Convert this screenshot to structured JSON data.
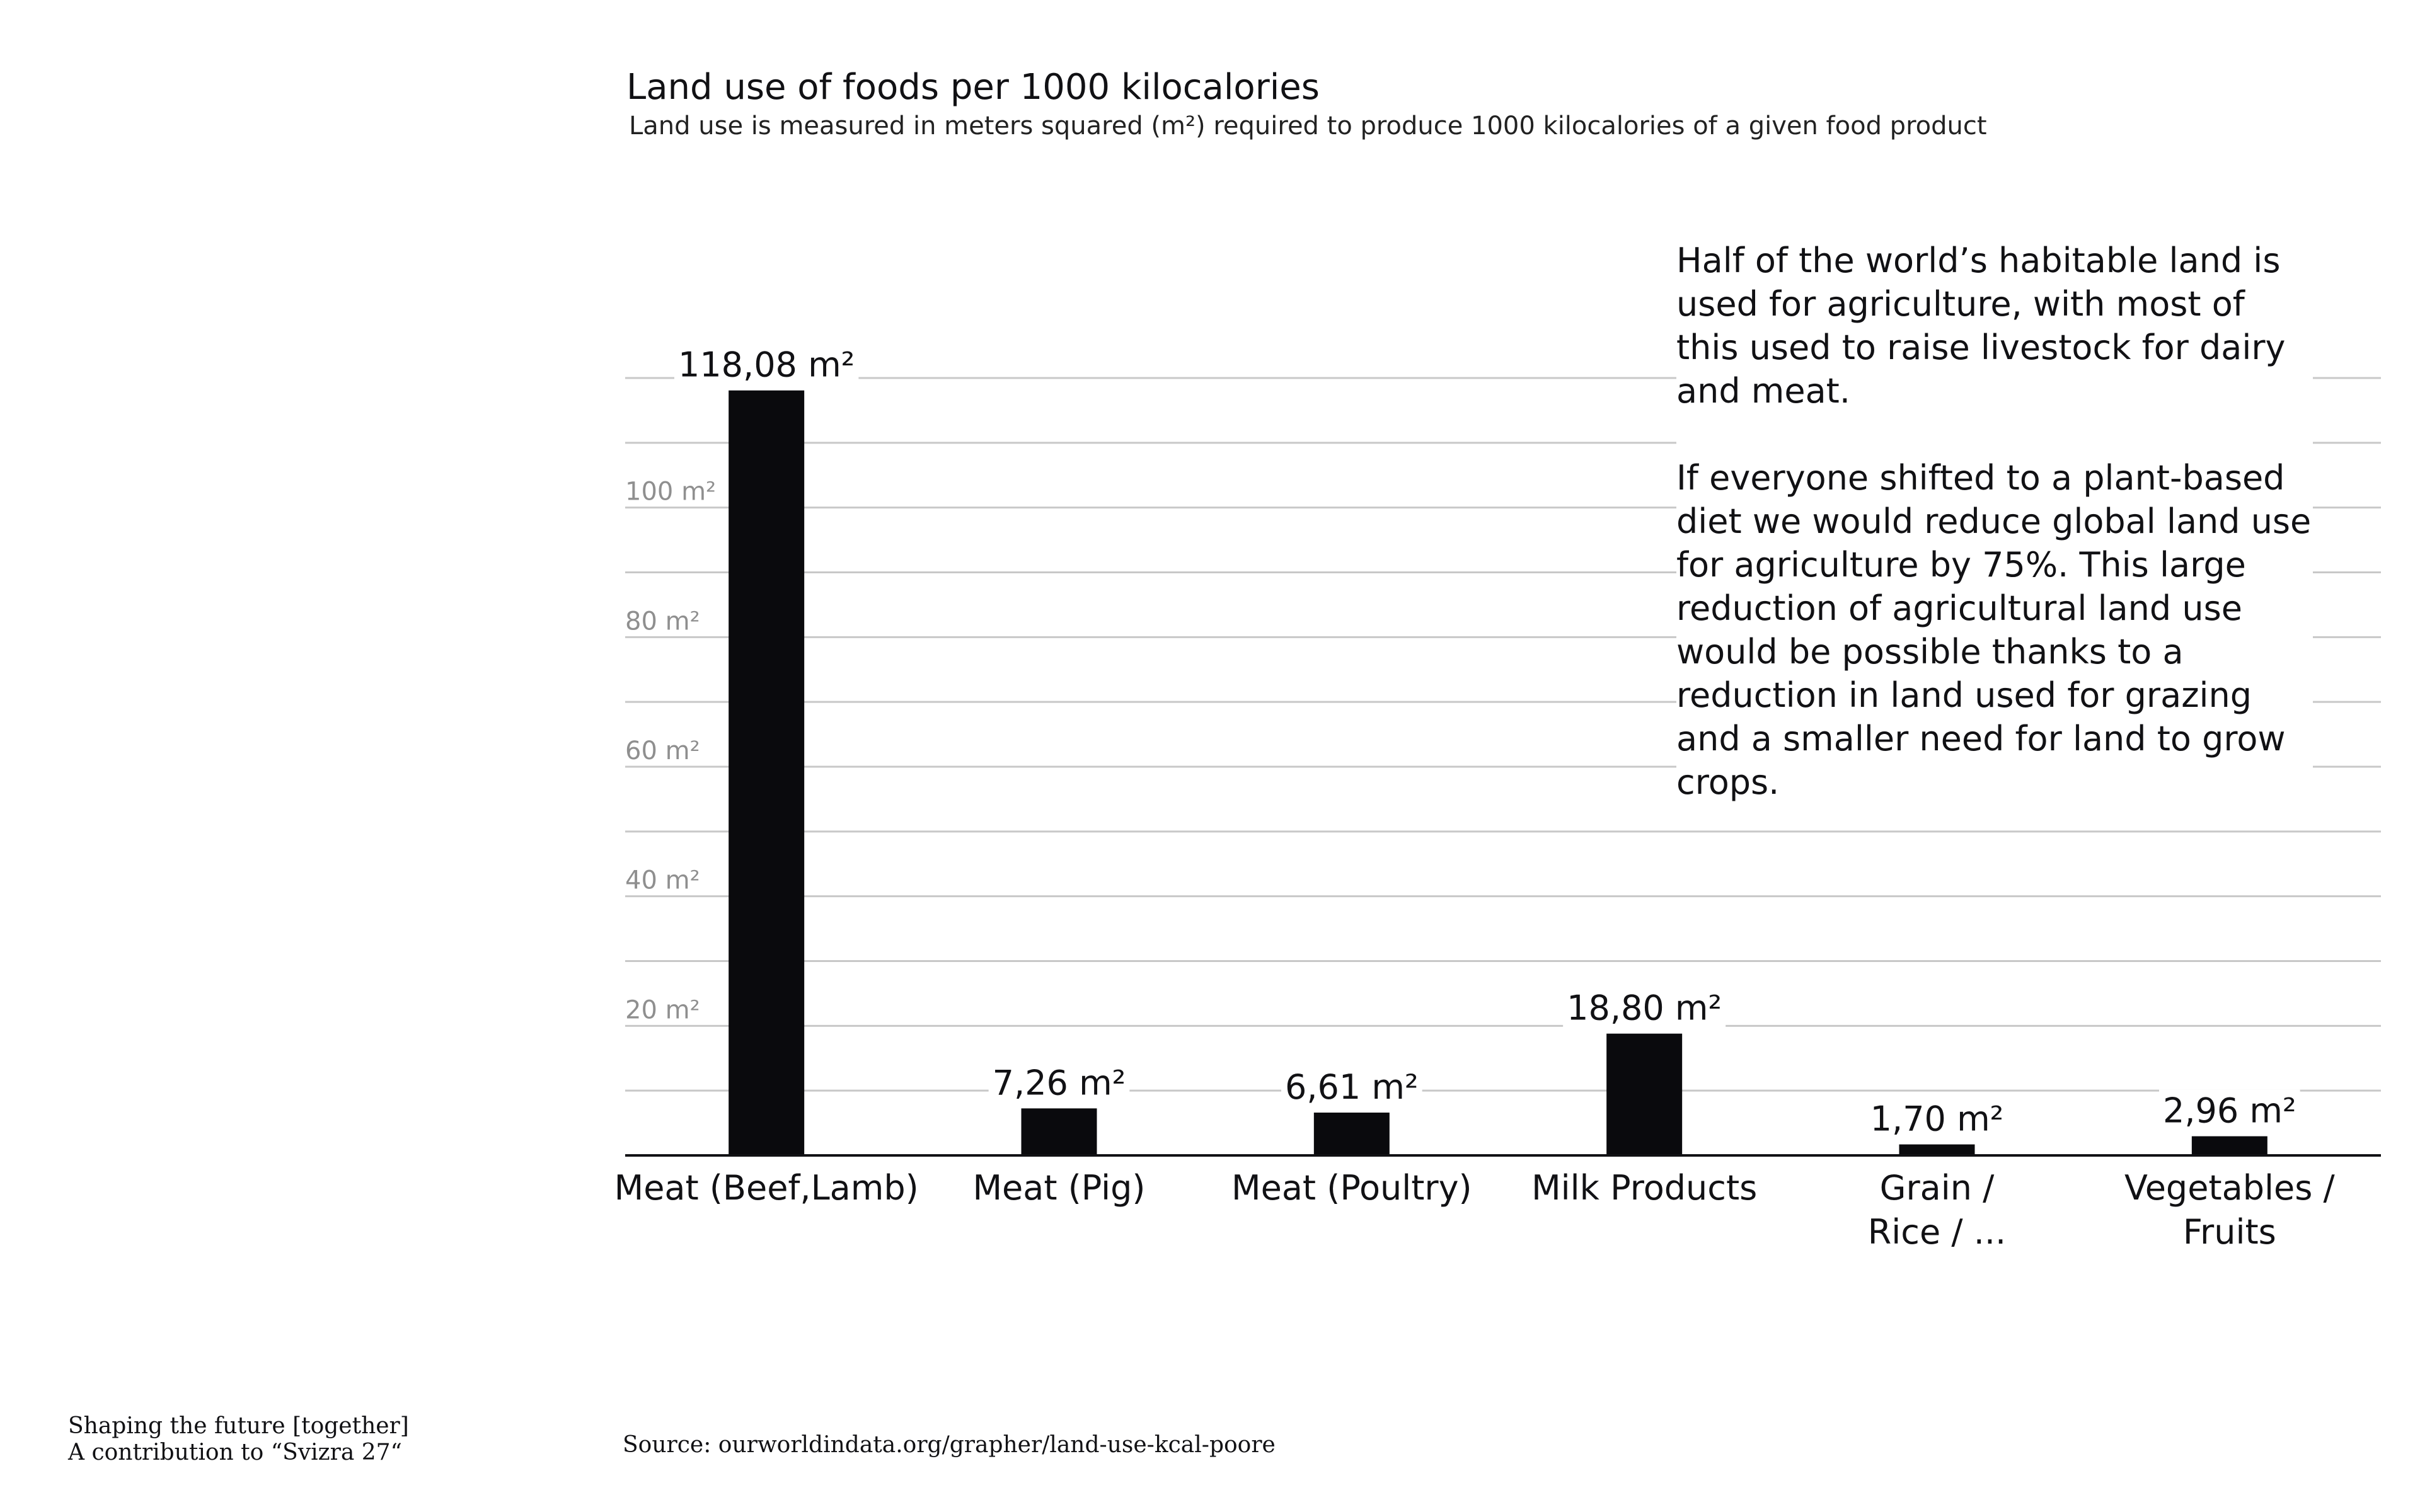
{
  "chart_data": {
    "type": "bar",
    "title": "Land use of foods per 1000 kilocalories",
    "subtitle": "Land use is measured in meters squared (m²) required to produce 1000 kilocalories of a given food product",
    "categories": [
      "Meat (Beef,Lamb)",
      "Meat (Pig)",
      "Meat (Poultry)",
      "Milk Products",
      "Grain / Rice / ...",
      "Vegetables / Fruits"
    ],
    "values": [
      118.08,
      7.26,
      6.61,
      18.8,
      1.7,
      2.96
    ],
    "value_labels": [
      "118,08 m²",
      "7,26 m²",
      "6,61 m²",
      "18,80 m²",
      "1,70 m²",
      "2,96 m²"
    ],
    "unit": "m²",
    "ylim": [
      0,
      120
    ],
    "yticks": [
      20,
      40,
      60,
      80,
      100
    ],
    "ytick_labels": [
      "20 m²",
      "40 m²",
      "60 m²",
      "80 m²",
      "100 m²"
    ],
    "grid_step": 10,
    "grid": true,
    "xlabel": "",
    "ylabel": ""
  },
  "note": {
    "paragraph1": "Half of the world’s habitable land is used for agriculture, with most of this used to raise livestock for dairy and meat.",
    "paragraph2": "If everyone shifted to a plant-based diet we would reduce global land use for agriculture by 75%. This large reduction of agricultural land use would be possible thanks to a reduction in land used for grazing and a smaller need for land to grow crops."
  },
  "footer": {
    "line1": "Shaping the future [together]",
    "line2": "A contribution to “Svizra 27“",
    "source": "Source: ourworldindata.org/grapher/land-use-kcal-poore"
  },
  "colors": {
    "bar": "#0a0a0d",
    "grid": "#c8c8c8",
    "tick": "#8f8f8f",
    "background": "#ffffff"
  }
}
